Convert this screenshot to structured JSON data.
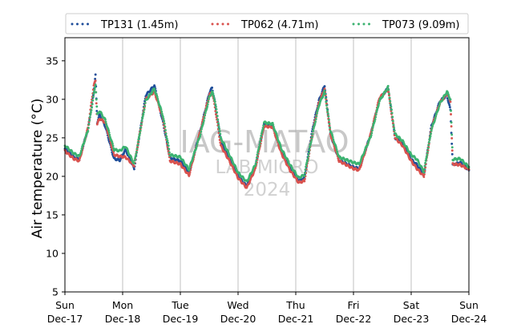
{
  "chart_data": {
    "type": "scatter",
    "ylabel": "Air temperature (°C)",
    "ylim": [
      5,
      38
    ],
    "yticks": [
      5,
      10,
      15,
      20,
      25,
      30,
      35
    ],
    "xlim_days": [
      0,
      7
    ],
    "xticks": [
      {
        "day": "Sun",
        "date": "Dec-17"
      },
      {
        "day": "Mon",
        "date": "Dec-18"
      },
      {
        "day": "Tue",
        "date": "Dec-19"
      },
      {
        "day": "Wed",
        "date": "Dec-20"
      },
      {
        "day": "Thu",
        "date": "Dec-21"
      },
      {
        "day": "Fri",
        "date": "Dec-22"
      },
      {
        "day": "Sat",
        "date": "Dec-23"
      },
      {
        "day": "Sun",
        "date": "Dec-24"
      }
    ],
    "grid": "vertical",
    "legend_position": "top, outside plot",
    "watermark": [
      "IAG-MATAO",
      "LAB MICRO",
      "2024"
    ],
    "series": [
      {
        "name": "TP131 (1.45m)",
        "color": "#1f4e9a",
        "points": [
          [
            0.0,
            23.6
          ],
          [
            0.15,
            22.5
          ],
          [
            0.25,
            22.2
          ],
          [
            0.4,
            26.2
          ],
          [
            0.5,
            31.0
          ],
          [
            0.53,
            33.1
          ],
          [
            0.56,
            27.0
          ],
          [
            0.6,
            28.0
          ],
          [
            0.7,
            26.5
          ],
          [
            0.85,
            22.3
          ],
          [
            0.95,
            22.1
          ],
          [
            1.05,
            23.5
          ],
          [
            1.2,
            21.0
          ],
          [
            1.4,
            30.5
          ],
          [
            1.55,
            31.8
          ],
          [
            1.7,
            27.0
          ],
          [
            1.82,
            22.4
          ],
          [
            2.0,
            22.0
          ],
          [
            2.15,
            20.4
          ],
          [
            2.35,
            26.0
          ],
          [
            2.5,
            30.8
          ],
          [
            2.55,
            31.5
          ],
          [
            2.6,
            29.6
          ],
          [
            2.7,
            24.5
          ],
          [
            2.85,
            22.2
          ],
          [
            3.0,
            20.0
          ],
          [
            3.15,
            18.7
          ],
          [
            3.3,
            21.2
          ],
          [
            3.45,
            26.8
          ],
          [
            3.6,
            26.5
          ],
          [
            3.75,
            23.2
          ],
          [
            3.9,
            21.0
          ],
          [
            4.05,
            19.4
          ],
          [
            4.15,
            19.8
          ],
          [
            4.3,
            26.5
          ],
          [
            4.4,
            29.8
          ],
          [
            4.5,
            31.8
          ],
          [
            4.6,
            25.5
          ],
          [
            4.75,
            22.1
          ],
          [
            5.0,
            21.2
          ],
          [
            5.1,
            21.0
          ],
          [
            5.3,
            25.5
          ],
          [
            5.45,
            30.0
          ],
          [
            5.6,
            31.5
          ],
          [
            5.72,
            25.0
          ],
          [
            5.85,
            24.3
          ],
          [
            6.0,
            22.2
          ],
          [
            6.1,
            21.5
          ],
          [
            6.22,
            20.1
          ],
          [
            6.35,
            26.5
          ],
          [
            6.5,
            29.8
          ],
          [
            6.62,
            30.5
          ],
          [
            6.68,
            28.6
          ],
          [
            6.72,
            21.5
          ],
          [
            6.85,
            21.8
          ],
          [
            7.0,
            20.8
          ]
        ]
      },
      {
        "name": "TP062 (4.71m)",
        "color": "#d9534f",
        "points": [
          [
            0.0,
            23.3
          ],
          [
            0.15,
            22.3
          ],
          [
            0.25,
            22.0
          ],
          [
            0.4,
            26.3
          ],
          [
            0.5,
            31.8
          ],
          [
            0.53,
            32.4
          ],
          [
            0.56,
            26.8
          ],
          [
            0.6,
            27.5
          ],
          [
            0.7,
            27.0
          ],
          [
            0.85,
            22.8
          ],
          [
            0.95,
            22.6
          ],
          [
            1.05,
            22.5
          ],
          [
            1.2,
            21.4
          ],
          [
            1.4,
            30.0
          ],
          [
            1.55,
            31.0
          ],
          [
            1.7,
            27.5
          ],
          [
            1.82,
            22.0
          ],
          [
            2.0,
            21.6
          ],
          [
            2.15,
            20.1
          ],
          [
            2.35,
            26.0
          ],
          [
            2.5,
            30.5
          ],
          [
            2.55,
            31.0
          ],
          [
            2.6,
            29.0
          ],
          [
            2.7,
            24.0
          ],
          [
            2.85,
            22.0
          ],
          [
            3.0,
            19.8
          ],
          [
            3.15,
            18.5
          ],
          [
            3.3,
            21.0
          ],
          [
            3.45,
            26.5
          ],
          [
            3.6,
            26.4
          ],
          [
            3.75,
            23.0
          ],
          [
            3.9,
            20.8
          ],
          [
            4.05,
            19.2
          ],
          [
            4.15,
            19.4
          ],
          [
            4.3,
            26.0
          ],
          [
            4.4,
            29.5
          ],
          [
            4.5,
            31.4
          ],
          [
            4.6,
            25.5
          ],
          [
            4.75,
            22.0
          ],
          [
            5.0,
            21.0
          ],
          [
            5.1,
            20.8
          ],
          [
            5.3,
            25.5
          ],
          [
            5.45,
            30.2
          ],
          [
            5.6,
            31.3
          ],
          [
            5.72,
            25.0
          ],
          [
            5.85,
            24.0
          ],
          [
            6.0,
            22.0
          ],
          [
            6.1,
            21.0
          ],
          [
            6.22,
            20.0
          ],
          [
            6.35,
            26.2
          ],
          [
            6.5,
            29.6
          ],
          [
            6.62,
            30.7
          ],
          [
            6.68,
            29.8
          ],
          [
            6.72,
            21.6
          ],
          [
            6.85,
            21.5
          ],
          [
            7.0,
            20.9
          ]
        ]
      },
      {
        "name": "TP073 (9.09m)",
        "color": "#3cb371",
        "points": [
          [
            0.0,
            24.0
          ],
          [
            0.15,
            23.0
          ],
          [
            0.25,
            22.6
          ],
          [
            0.4,
            26.0
          ],
          [
            0.5,
            30.6
          ],
          [
            0.53,
            32.0
          ],
          [
            0.56,
            28.0
          ],
          [
            0.6,
            28.5
          ],
          [
            0.7,
            27.3
          ],
          [
            0.85,
            23.5
          ],
          [
            0.95,
            23.3
          ],
          [
            1.05,
            23.9
          ],
          [
            1.2,
            21.6
          ],
          [
            1.4,
            29.8
          ],
          [
            1.55,
            31.4
          ],
          [
            1.7,
            27.8
          ],
          [
            1.82,
            22.8
          ],
          [
            2.0,
            22.5
          ],
          [
            2.15,
            20.9
          ],
          [
            2.35,
            25.5
          ],
          [
            2.5,
            30.2
          ],
          [
            2.55,
            31.0
          ],
          [
            2.6,
            29.8
          ],
          [
            2.7,
            25.0
          ],
          [
            2.85,
            22.8
          ],
          [
            3.0,
            20.5
          ],
          [
            3.15,
            19.3
          ],
          [
            3.3,
            21.5
          ],
          [
            3.45,
            27.0
          ],
          [
            3.6,
            26.8
          ],
          [
            3.75,
            23.6
          ],
          [
            3.9,
            21.5
          ],
          [
            4.05,
            19.8
          ],
          [
            4.15,
            20.2
          ],
          [
            4.3,
            25.8
          ],
          [
            4.4,
            29.2
          ],
          [
            4.5,
            31.0
          ],
          [
            4.6,
            26.0
          ],
          [
            4.75,
            22.5
          ],
          [
            5.0,
            21.8
          ],
          [
            5.1,
            21.6
          ],
          [
            5.3,
            25.2
          ],
          [
            5.45,
            29.8
          ],
          [
            5.6,
            31.6
          ],
          [
            5.72,
            25.5
          ],
          [
            5.85,
            24.6
          ],
          [
            6.0,
            22.8
          ],
          [
            6.1,
            22.2
          ],
          [
            6.22,
            20.6
          ],
          [
            6.35,
            26.0
          ],
          [
            6.5,
            29.5
          ],
          [
            6.62,
            31.0
          ],
          [
            6.68,
            30.0
          ],
          [
            6.72,
            22.2
          ],
          [
            6.85,
            22.3
          ],
          [
            7.0,
            21.2
          ]
        ]
      }
    ]
  }
}
